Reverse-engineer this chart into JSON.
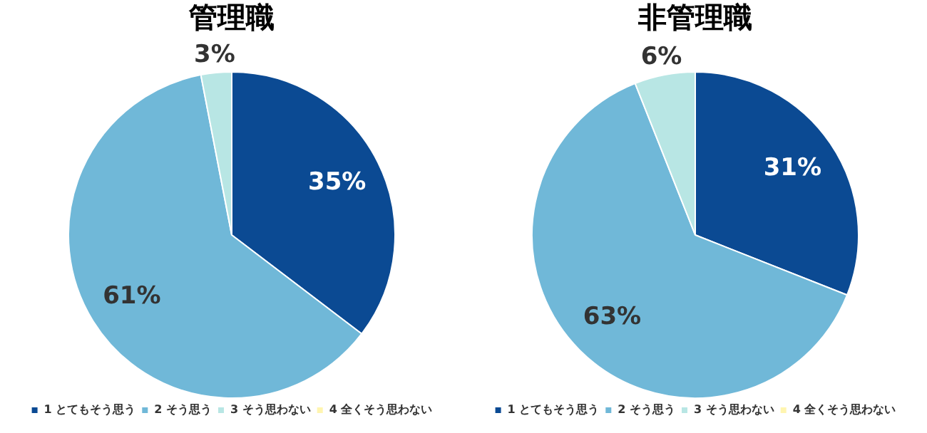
{
  "chart_data": [
    {
      "type": "pie",
      "title": "管理職",
      "categories": [
        "1 とてもそう思う",
        "2 そう思う",
        "3 そう思わない",
        "4 全くそう思わない"
      ],
      "values": [
        35,
        61,
        3,
        0
      ],
      "colors": [
        "#0b4a93",
        "#70b8d8",
        "#b8e6e4",
        "#fff5b0"
      ],
      "value_labels": [
        "35%",
        "61%",
        "3%",
        null
      ],
      "legend": "bottom"
    },
    {
      "type": "pie",
      "title": "非管理職",
      "categories": [
        "1 とてもそう思う",
        "2 そう思う",
        "3 そう思わない",
        "4 全くそう思わない"
      ],
      "values": [
        31,
        63,
        6,
        0
      ],
      "colors": [
        "#0b4a93",
        "#70b8d8",
        "#b8e6e4",
        "#fff5b0"
      ],
      "value_labels": [
        "31%",
        "63%",
        "6%",
        null
      ],
      "legend": "bottom"
    }
  ]
}
